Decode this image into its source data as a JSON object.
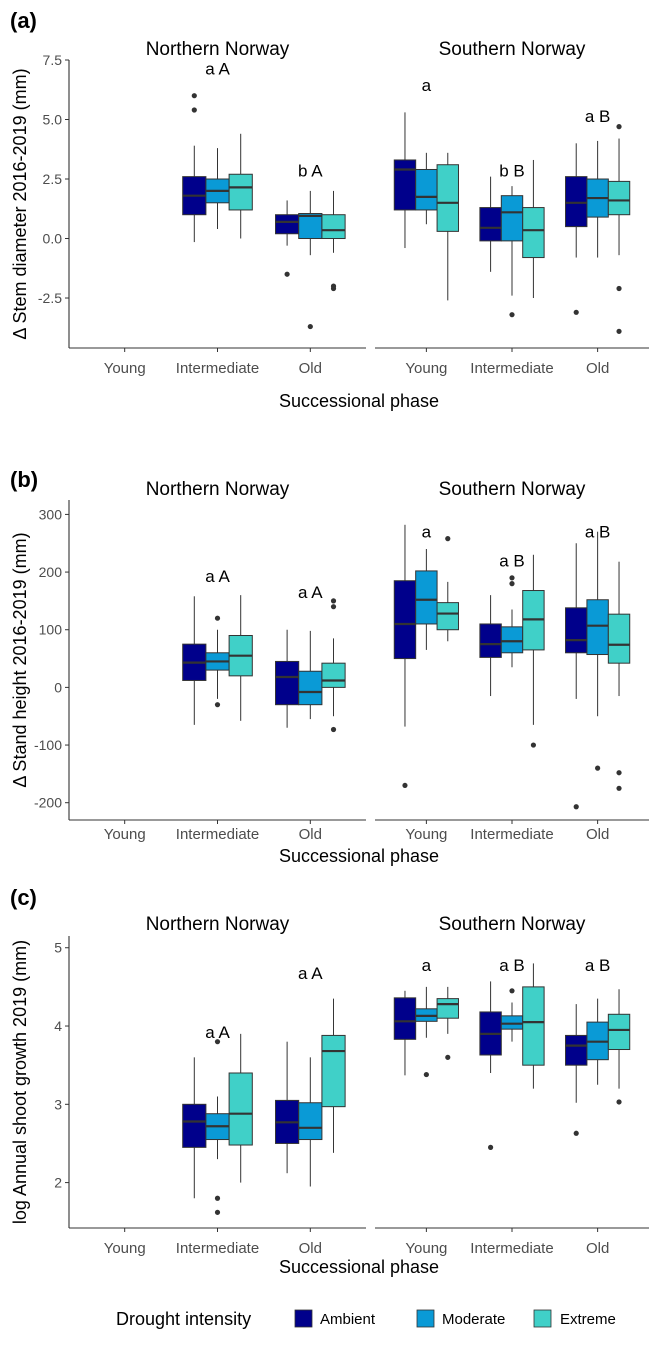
{
  "legend": {
    "title": "Drought intensity",
    "items": [
      {
        "name": "Ambient",
        "color": "#00008b"
      },
      {
        "name": "Moderate",
        "color": "#0a9ad6"
      },
      {
        "name": "Extreme",
        "color": "#40d0c8"
      }
    ]
  },
  "chart_data": [
    {
      "type": "boxplot",
      "panel_tag": "(a)",
      "ylabel": "Δ Stem diameter 2016-2019 (mm)",
      "xlabel": "Successional phase",
      "ylim": [
        -4.6,
        7.5
      ],
      "yticks": [
        -2.5,
        0.0,
        2.5,
        5.0,
        7.5
      ],
      "ytick_labels": [
        "-2.5",
        "0.0",
        "2.5",
        "5.0",
        "7.5"
      ],
      "categories": [
        "Young",
        "Intermediate",
        "Old"
      ],
      "facets": [
        {
          "title": "Northern Norway",
          "groups": [
            {
              "category": "Young",
              "label": "",
              "boxes": []
            },
            {
              "category": "Intermediate",
              "label": "a A",
              "label_y": 6.9,
              "boxes": [
                {
                  "series": "Ambient",
                  "q": [
                    -0.15,
                    1.0,
                    1.8,
                    2.6,
                    3.9
                  ],
                  "outliers": [
                    5.4,
                    6.0
                  ]
                },
                {
                  "series": "Moderate",
                  "q": [
                    0.4,
                    1.5,
                    2.0,
                    2.5,
                    3.8
                  ],
                  "outliers": []
                },
                {
                  "series": "Extreme",
                  "q": [
                    0.0,
                    1.2,
                    2.15,
                    2.7,
                    4.4
                  ],
                  "outliers": []
                }
              ]
            },
            {
              "category": "Old",
              "label": "b A",
              "label_y": 2.6,
              "boxes": [
                {
                  "series": "Ambient",
                  "q": [
                    -0.3,
                    0.2,
                    0.7,
                    1.0,
                    1.6
                  ],
                  "outliers": [
                    -1.5
                  ]
                },
                {
                  "series": "Moderate",
                  "q": [
                    -0.7,
                    0.0,
                    0.95,
                    1.05,
                    2.0
                  ],
                  "outliers": [
                    -3.7
                  ]
                },
                {
                  "series": "Extreme",
                  "q": [
                    -0.6,
                    0.0,
                    0.35,
                    1.0,
                    2.0
                  ],
                  "outliers": [
                    -2.0,
                    -2.1
                  ]
                }
              ]
            }
          ]
        },
        {
          "title": "Southern Norway",
          "groups": [
            {
              "category": "Young",
              "label": "a",
              "label_y": 6.2,
              "boxes": [
                {
                  "series": "Ambient",
                  "q": [
                    -0.4,
                    1.2,
                    2.9,
                    3.3,
                    5.3
                  ],
                  "outliers": []
                },
                {
                  "series": "Moderate",
                  "q": [
                    0.6,
                    1.2,
                    1.75,
                    2.9,
                    3.6
                  ],
                  "outliers": []
                },
                {
                  "series": "Extreme",
                  "q": [
                    -2.6,
                    0.3,
                    1.5,
                    3.1,
                    3.6
                  ],
                  "outliers": []
                }
              ]
            },
            {
              "category": "Intermediate",
              "label": "b B",
              "label_y": 2.6,
              "boxes": [
                {
                  "series": "Ambient",
                  "q": [
                    -1.4,
                    -0.1,
                    0.45,
                    1.3,
                    2.6
                  ],
                  "outliers": []
                },
                {
                  "series": "Moderate",
                  "q": [
                    -2.4,
                    -0.1,
                    1.1,
                    1.8,
                    2.2
                  ],
                  "outliers": [
                    -3.2
                  ]
                },
                {
                  "series": "Extreme",
                  "q": [
                    -2.5,
                    -0.8,
                    0.35,
                    1.3,
                    3.3
                  ],
                  "outliers": []
                }
              ]
            },
            {
              "category": "Old",
              "label": "a B",
              "label_y": 4.9,
              "boxes": [
                {
                  "series": "Ambient",
                  "q": [
                    -0.8,
                    0.5,
                    1.5,
                    2.6,
                    4.0
                  ],
                  "outliers": [
                    -3.1
                  ]
                },
                {
                  "series": "Moderate",
                  "q": [
                    -0.8,
                    0.9,
                    1.7,
                    2.5,
                    4.1
                  ],
                  "outliers": []
                },
                {
                  "series": "Extreme",
                  "q": [
                    -0.7,
                    1.0,
                    1.6,
                    2.4,
                    4.2
                  ],
                  "outliers": [
                    -2.1,
                    -3.9,
                    4.7
                  ]
                }
              ]
            }
          ]
        }
      ]
    },
    {
      "type": "boxplot",
      "panel_tag": "(b)",
      "ylabel": "Δ Stand height 2016-2019 (mm)",
      "xlabel": "Successional phase",
      "ylim": [
        -230,
        325
      ],
      "yticks": [
        -200,
        -100,
        0,
        100,
        200,
        300
      ],
      "ytick_labels": [
        "-200",
        "-100",
        "0",
        "100",
        "200",
        "300"
      ],
      "categories": [
        "Young",
        "Intermediate",
        "Old"
      ],
      "facets": [
        {
          "title": "Northern Norway",
          "groups": [
            {
              "category": "Young",
              "label": "",
              "boxes": []
            },
            {
              "category": "Intermediate",
              "label": "a A",
              "label_y": 183,
              "boxes": [
                {
                  "series": "Ambient",
                  "q": [
                    -65,
                    12,
                    43,
                    75,
                    158
                  ],
                  "outliers": []
                },
                {
                  "series": "Moderate",
                  "q": [
                    -20,
                    30,
                    45,
                    60,
                    100
                  ],
                  "outliers": [
                    120,
                    -30
                  ]
                },
                {
                  "series": "Extreme",
                  "q": [
                    -58,
                    20,
                    55,
                    90,
                    160
                  ],
                  "outliers": []
                }
              ]
            },
            {
              "category": "Old",
              "label": "a A",
              "label_y": 155,
              "boxes": [
                {
                  "series": "Ambient",
                  "q": [
                    -70,
                    -30,
                    18,
                    45,
                    100
                  ],
                  "outliers": []
                },
                {
                  "series": "Moderate",
                  "q": [
                    -55,
                    -30,
                    -8,
                    28,
                    98
                  ],
                  "outliers": []
                },
                {
                  "series": "Extreme",
                  "q": [
                    -50,
                    0,
                    12,
                    42,
                    85
                  ],
                  "outliers": [
                    150,
                    140,
                    -73
                  ]
                }
              ]
            }
          ]
        },
        {
          "title": "Southern Norway",
          "groups": [
            {
              "category": "Young",
              "label": "a",
              "label_y": 260,
              "boxes": [
                {
                  "series": "Ambient",
                  "q": [
                    -68,
                    50,
                    110,
                    185,
                    282
                  ],
                  "outliers": [
                    -170
                  ]
                },
                {
                  "series": "Moderate",
                  "q": [
                    65,
                    110,
                    152,
                    202,
                    240
                  ],
                  "outliers": []
                },
                {
                  "series": "Extreme",
                  "q": [
                    80,
                    100,
                    128,
                    147,
                    183
                  ],
                  "outliers": [
                    258
                  ]
                }
              ]
            },
            {
              "category": "Intermediate",
              "label": "a B",
              "label_y": 210,
              "boxes": [
                {
                  "series": "Ambient",
                  "q": [
                    -15,
                    52,
                    75,
                    110,
                    160
                  ],
                  "outliers": []
                },
                {
                  "series": "Moderate",
                  "q": [
                    35,
                    60,
                    80,
                    105,
                    135
                  ],
                  "outliers": [
                    190,
                    180
                  ]
                },
                {
                  "series": "Extreme",
                  "q": [
                    -65,
                    65,
                    118,
                    168,
                    230
                  ],
                  "outliers": [
                    -100
                  ]
                }
              ]
            },
            {
              "category": "Old",
              "label": "a B",
              "label_y": 260,
              "boxes": [
                {
                  "series": "Ambient",
                  "q": [
                    -20,
                    60,
                    82,
                    138,
                    250
                  ],
                  "outliers": [
                    -207
                  ]
                },
                {
                  "series": "Moderate",
                  "q": [
                    -50,
                    57,
                    107,
                    152,
                    270
                  ],
                  "outliers": [
                    -140
                  ]
                },
                {
                  "series": "Extreme",
                  "q": [
                    -15,
                    42,
                    74,
                    127,
                    218
                  ],
                  "outliers": [
                    -148,
                    -175
                  ]
                }
              ]
            }
          ]
        }
      ]
    },
    {
      "type": "boxplot",
      "panel_tag": "(c)",
      "ylabel": "log Annual shoot growth 2019 (mm)",
      "xlabel": "Successional phase",
      "ylim": [
        1.42,
        5.15
      ],
      "yticks": [
        2,
        3,
        4,
        5
      ],
      "ytick_labels": [
        "2",
        "3",
        "4",
        "5"
      ],
      "categories": [
        "Young",
        "Intermediate",
        "Old"
      ],
      "facets": [
        {
          "title": "Northern Norway",
          "groups": [
            {
              "category": "Young",
              "label": "",
              "boxes": []
            },
            {
              "category": "Intermediate",
              "label": "a A",
              "label_y": 3.85,
              "boxes": [
                {
                  "series": "Ambient",
                  "q": [
                    1.8,
                    2.45,
                    2.78,
                    3.0,
                    3.6
                  ],
                  "outliers": []
                },
                {
                  "series": "Moderate",
                  "q": [
                    2.3,
                    2.55,
                    2.72,
                    2.88,
                    3.1
                  ],
                  "outliers": [
                    3.8,
                    1.8,
                    1.62
                  ]
                },
                {
                  "series": "Extreme",
                  "q": [
                    2.0,
                    2.48,
                    2.88,
                    3.4,
                    3.9
                  ],
                  "outliers": []
                }
              ]
            },
            {
              "category": "Old",
              "label": "a A",
              "label_y": 4.6,
              "boxes": [
                {
                  "series": "Ambient",
                  "q": [
                    2.12,
                    2.5,
                    2.77,
                    3.05,
                    3.8
                  ],
                  "outliers": []
                },
                {
                  "series": "Moderate",
                  "q": [
                    1.95,
                    2.55,
                    2.7,
                    3.02,
                    3.6
                  ],
                  "outliers": []
                },
                {
                  "series": "Extreme",
                  "q": [
                    2.38,
                    2.97,
                    3.68,
                    3.88,
                    4.35
                  ],
                  "outliers": []
                }
              ]
            }
          ]
        },
        {
          "title": "Southern Norway",
          "groups": [
            {
              "category": "Young",
              "label": "a",
              "label_y": 4.7,
              "boxes": [
                {
                  "series": "Ambient",
                  "q": [
                    3.37,
                    3.83,
                    4.06,
                    4.36,
                    4.45
                  ],
                  "outliers": []
                },
                {
                  "series": "Moderate",
                  "q": [
                    3.85,
                    4.06,
                    4.13,
                    4.22,
                    4.5
                  ],
                  "outliers": [
                    3.38
                  ]
                },
                {
                  "series": "Extreme",
                  "q": [
                    3.9,
                    4.1,
                    4.28,
                    4.35,
                    4.5
                  ],
                  "outliers": [
                    3.6
                  ]
                }
              ]
            },
            {
              "category": "Intermediate",
              "label": "a B",
              "label_y": 4.7,
              "boxes": [
                {
                  "series": "Ambient",
                  "q": [
                    3.4,
                    3.63,
                    3.9,
                    4.18,
                    4.57
                  ],
                  "outliers": [
                    2.45
                  ]
                },
                {
                  "series": "Moderate",
                  "q": [
                    3.8,
                    3.96,
                    4.03,
                    4.13,
                    4.3
                  ],
                  "outliers": [
                    4.45
                  ]
                },
                {
                  "series": "Extreme",
                  "q": [
                    3.2,
                    3.5,
                    4.05,
                    4.5,
                    4.8
                  ],
                  "outliers": []
                }
              ]
            },
            {
              "category": "Old",
              "label": "a B",
              "label_y": 4.7,
              "boxes": [
                {
                  "series": "Ambient",
                  "q": [
                    3.02,
                    3.5,
                    3.75,
                    3.88,
                    4.28
                  ],
                  "outliers": [
                    2.63
                  ]
                },
                {
                  "series": "Moderate",
                  "q": [
                    3.25,
                    3.57,
                    3.8,
                    4.05,
                    4.35
                  ],
                  "outliers": []
                },
                {
                  "series": "Extreme",
                  "q": [
                    3.2,
                    3.7,
                    3.95,
                    4.15,
                    4.47
                  ],
                  "outliers": [
                    3.03
                  ]
                }
              ]
            }
          ]
        }
      ]
    }
  ]
}
